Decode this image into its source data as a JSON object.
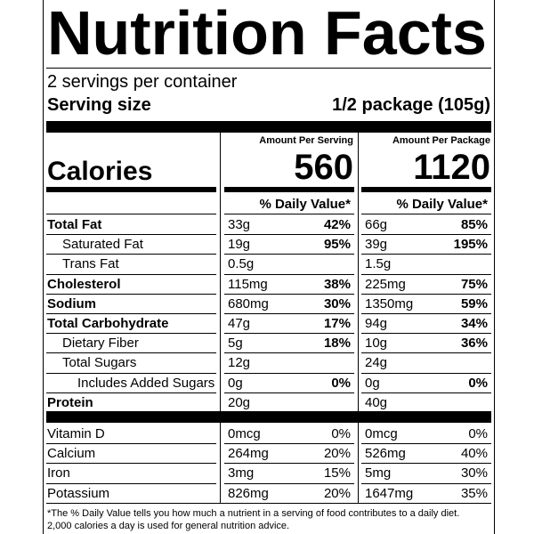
{
  "title": "Nutrition Facts",
  "servings": "2 servings per container",
  "serving_size": {
    "label": "Serving size",
    "value": "1/2 package (105g)"
  },
  "columns": [
    {
      "header": "Amount Per Serving",
      "calories": "560"
    },
    {
      "header": "Amount Per Package",
      "calories": "1120"
    }
  ],
  "calories_label": "Calories",
  "daily_value_header": "% Daily Value*",
  "nutrients": [
    {
      "name": "Total Fat",
      "serving": [
        "33g",
        "42%"
      ],
      "package": [
        "66g",
        "85%"
      ]
    },
    {
      "name": "Saturated Fat",
      "serving": [
        "19g",
        "95%"
      ],
      "package": [
        "39g",
        "195%"
      ]
    },
    {
      "name": "Trans Fat",
      "serving": [
        "0.5g",
        null
      ],
      "package": [
        "1.5g",
        null
      ]
    },
    {
      "name": "Cholesterol",
      "serving": [
        "115mg",
        "38%"
      ],
      "package": [
        "225mg",
        "75%"
      ]
    },
    {
      "name": "Sodium",
      "serving": [
        "680mg",
        "30%"
      ],
      "package": [
        "1350mg",
        "59%"
      ]
    },
    {
      "name": "Total Carbohydrate",
      "serving": [
        "47g",
        "17%"
      ],
      "package": [
        "94g",
        "34%"
      ]
    },
    {
      "name": "Dietary Fiber",
      "serving": [
        "5g",
        "18%"
      ],
      "package": [
        "10g",
        "36%"
      ]
    },
    {
      "name": "Total Sugars",
      "serving": [
        "12g",
        null
      ],
      "package": [
        "24g",
        null
      ]
    },
    {
      "name": "Includes Added Sugars",
      "serving": [
        "0g",
        "0%"
      ],
      "package": [
        "0g",
        "0%"
      ]
    },
    {
      "name": "Protein",
      "serving": [
        "20g",
        null
      ],
      "package": [
        "40g",
        null
      ]
    }
  ],
  "vitamins": [
    {
      "name": "Vitamin D",
      "serving": [
        "0mcg",
        "0%"
      ],
      "package": [
        "0mcg",
        "0%"
      ]
    },
    {
      "name": "Calcium",
      "serving": [
        "264mg",
        "20%"
      ],
      "package": [
        "526mg",
        "40%"
      ]
    },
    {
      "name": "Iron",
      "serving": [
        "3mg",
        "15%"
      ],
      "package": [
        "5mg",
        "30%"
      ]
    },
    {
      "name": "Potassium",
      "serving": [
        "826mg",
        "20%"
      ],
      "package": [
        "1647mg",
        "35%"
      ]
    }
  ],
  "footnote": [
    "*The % Daily Value tells you how much a nutrient in a serving of food contributes to a daily diet.",
    "2,000 calories a day is used for general nutrition advice."
  ]
}
